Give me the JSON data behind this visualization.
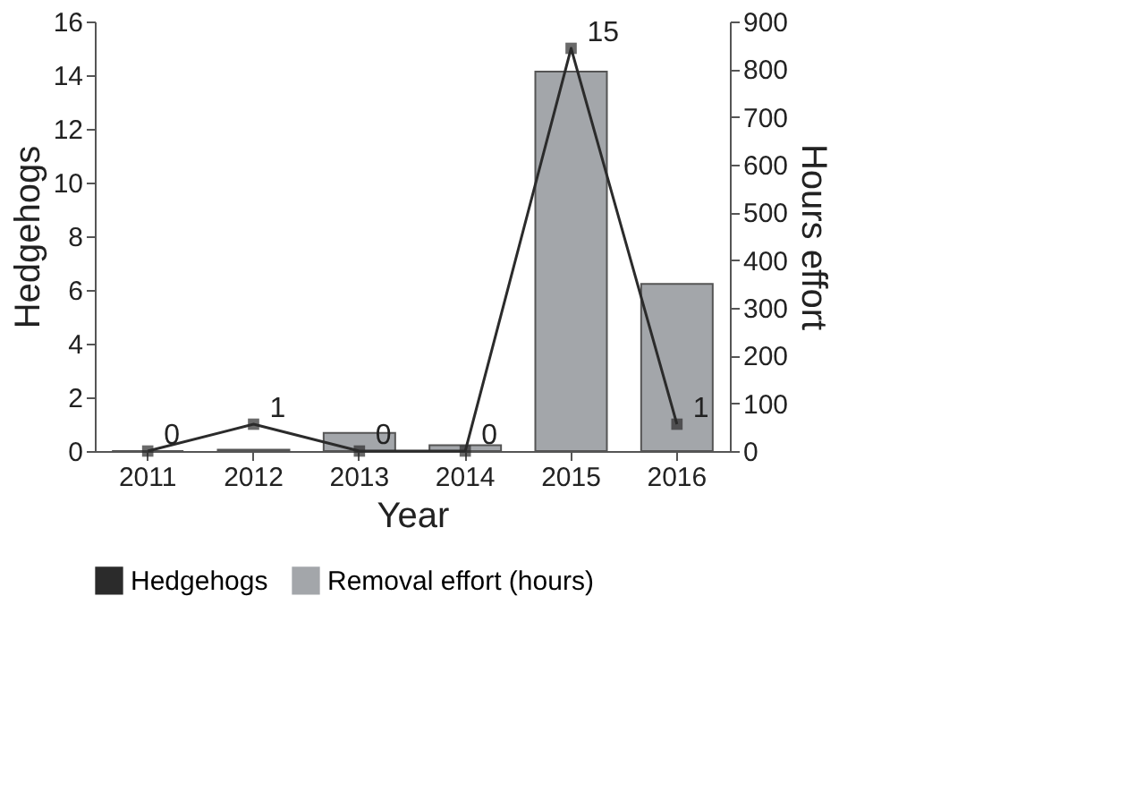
{
  "chart_data": {
    "type": "bar",
    "xlabel": "Year",
    "ylabel": "Hedgehogs",
    "y2label": "Hours effort",
    "categories": [
      "2011",
      "2012",
      "2013",
      "2014",
      "2015",
      "2016"
    ],
    "series": [
      {
        "name": "Hedgehogs",
        "type": "line",
        "color": "#2b2b2b",
        "values": [
          0,
          1,
          0,
          0,
          15,
          1
        ],
        "marker": "square",
        "data_labels": true
      },
      {
        "name": "Removal effort (hours)",
        "axis": "y2",
        "color": "#a3a6aa",
        "values": [
          0,
          3,
          38,
          12,
          795,
          350
        ]
      }
    ],
    "ylim": [
      0,
      16
    ],
    "yticks": [
      0,
      2,
      4,
      6,
      8,
      10,
      12,
      14,
      16
    ],
    "y2lim": [
      0,
      900
    ],
    "y2ticks": [
      0,
      100,
      200,
      300,
      400,
      500,
      600,
      700,
      800,
      900
    ],
    "legend": "bottom",
    "grid": false
  }
}
